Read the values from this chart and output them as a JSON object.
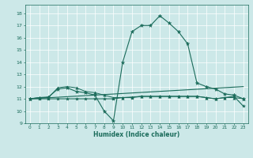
{
  "title": "",
  "xlabel": "Humidex (Indice chaleur)",
  "bg_color": "#cce8e8",
  "line_color": "#1a6b5a",
  "xlim": [
    -0.5,
    23.5
  ],
  "ylim": [
    9,
    18.7
  ],
  "yticks": [
    9,
    10,
    11,
    12,
    13,
    14,
    15,
    16,
    17,
    18
  ],
  "xticks": [
    0,
    1,
    2,
    3,
    4,
    5,
    6,
    7,
    8,
    9,
    10,
    11,
    12,
    13,
    14,
    15,
    16,
    17,
    18,
    19,
    20,
    21,
    22,
    23
  ],
  "series": [
    {
      "x": [
        0,
        1,
        2,
        3,
        4,
        5,
        6,
        7,
        8,
        9,
        10,
        11,
        12,
        13,
        14,
        15,
        16,
        17,
        18,
        19,
        20,
        21,
        22,
        23
      ],
      "y": [
        11.0,
        11.1,
        11.15,
        11.8,
        11.9,
        11.6,
        11.5,
        11.3,
        10.0,
        9.2,
        14.0,
        16.5,
        17.0,
        17.0,
        17.8,
        17.2,
        16.5,
        15.5,
        12.3,
        12.0,
        11.8,
        11.4,
        11.3,
        11.0
      ],
      "marker": "*",
      "markersize": 3.5,
      "lw": 0.8
    },
    {
      "x": [
        0,
        23
      ],
      "y": [
        11.0,
        12.0
      ],
      "marker": null,
      "markersize": 0,
      "lw": 0.8
    },
    {
      "x": [
        0,
        1,
        2,
        3,
        4,
        5,
        6,
        7,
        8,
        9,
        10,
        11,
        12,
        13,
        14,
        15,
        16,
        17,
        18,
        19,
        20,
        21,
        22,
        23
      ],
      "y": [
        11.0,
        11.0,
        11.0,
        11.0,
        11.0,
        11.0,
        11.0,
        11.0,
        11.0,
        11.0,
        11.1,
        11.1,
        11.2,
        11.2,
        11.2,
        11.2,
        11.2,
        11.2,
        11.2,
        11.1,
        11.0,
        11.1,
        11.2,
        10.4
      ],
      "marker": "*",
      "markersize": 3.0,
      "lw": 0.8
    },
    {
      "x": [
        0,
        1,
        2,
        3,
        4,
        5,
        6,
        7,
        8,
        9,
        10,
        11,
        12,
        13,
        14,
        15,
        16,
        17,
        18,
        19,
        20,
        21,
        22,
        23
      ],
      "y": [
        11.0,
        11.1,
        11.1,
        11.9,
        12.0,
        11.9,
        11.6,
        11.5,
        11.3,
        11.1,
        11.1,
        11.15,
        11.2,
        11.2,
        11.2,
        11.2,
        11.2,
        11.2,
        11.2,
        11.1,
        11.0,
        11.1,
        11.1,
        11.0
      ],
      "marker": "^",
      "markersize": 2.5,
      "lw": 0.7
    }
  ]
}
